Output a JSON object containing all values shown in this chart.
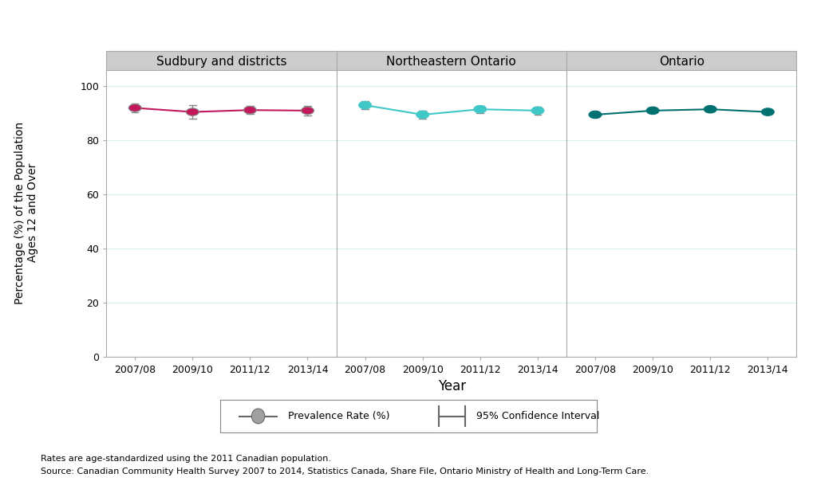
{
  "panels": [
    {
      "title": "Sudbury and districts",
      "color": "#C2185B",
      "years": [
        "2007/08",
        "2009/10",
        "2011/12",
        "2013/14"
      ],
      "values": [
        92.0,
        90.5,
        91.2,
        91.0
      ],
      "ci_low": [
        90.5,
        88.0,
        89.7,
        89.3
      ],
      "ci_high": [
        93.5,
        93.0,
        92.7,
        92.7
      ]
    },
    {
      "title": "Northeastern Ontario",
      "color": "#40C8C8",
      "years": [
        "2007/08",
        "2009/10",
        "2011/12",
        "2013/14"
      ],
      "values": [
        93.0,
        89.5,
        91.5,
        91.0
      ],
      "ci_low": [
        91.5,
        88.0,
        90.2,
        89.5
      ],
      "ci_high": [
        94.5,
        91.0,
        92.8,
        92.5
      ]
    },
    {
      "title": "Ontario",
      "color": "#007070",
      "years": [
        "2007/08",
        "2009/10",
        "2011/12",
        "2013/14"
      ],
      "values": [
        89.5,
        91.0,
        91.5,
        90.5
      ],
      "ci_low": [
        89.2,
        90.7,
        91.2,
        90.2
      ],
      "ci_high": [
        89.8,
        91.3,
        91.8,
        90.8
      ]
    }
  ],
  "ylabel": "Percentage (%) of the Population\nAges 12 and Over",
  "xlabel": "Year",
  "ylim": [
    0,
    106
  ],
  "yticks": [
    0,
    20,
    40,
    60,
    80,
    100
  ],
  "background_color": "#FFFFFF",
  "panel_bg": "#FFFFFF",
  "grid_color": "#DAEEF3",
  "header_bg": "#CCCCCC",
  "footnote1": "Rates are age-standardized using the 2011 Canadian population.",
  "footnote2": "Source: Canadian Community Health Survey 2007 to 2014, Statistics Canada, Share File, Ontario Ministry of Health and Long-Term Care."
}
